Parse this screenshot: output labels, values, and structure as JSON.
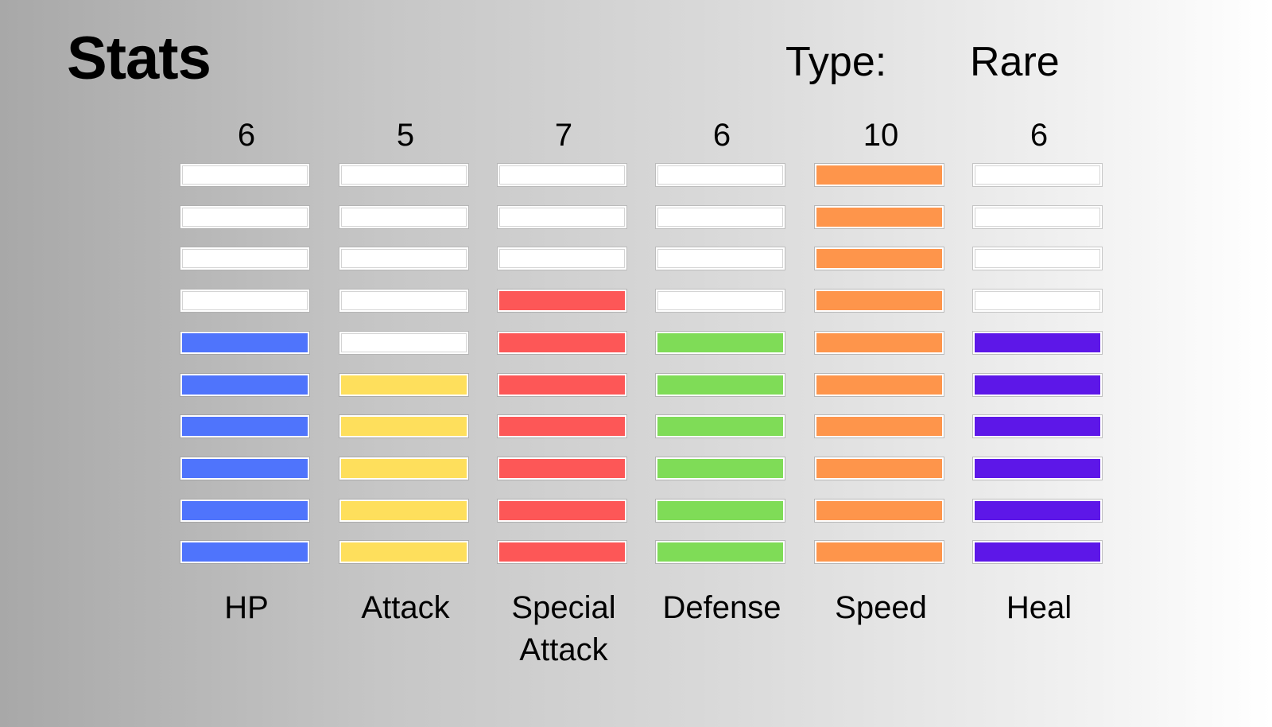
{
  "header": {
    "title": "Stats",
    "type_label": "Type:",
    "type_value": "Rare"
  },
  "max_level": 10,
  "empty_color": "#ffffff",
  "stats": [
    {
      "key": "hp",
      "label": "HP",
      "value": "6",
      "level": 6,
      "color": "#4f74fc"
    },
    {
      "key": "attack",
      "label": "Attack",
      "value": "5",
      "level": 5,
      "color": "#fedf5c"
    },
    {
      "key": "special-attack",
      "label": "Special Attack",
      "value": "7",
      "level": 7,
      "color": "#fd5757"
    },
    {
      "key": "defense",
      "label": "Defense",
      "value": "6",
      "level": 6,
      "color": "#7fdc57"
    },
    {
      "key": "speed",
      "label": "Speed",
      "value": "10",
      "level": 10,
      "color": "#fe954b"
    },
    {
      "key": "heal",
      "label": "Heal",
      "value": "6",
      "level": 6,
      "color": "#5d17e8"
    }
  ]
}
